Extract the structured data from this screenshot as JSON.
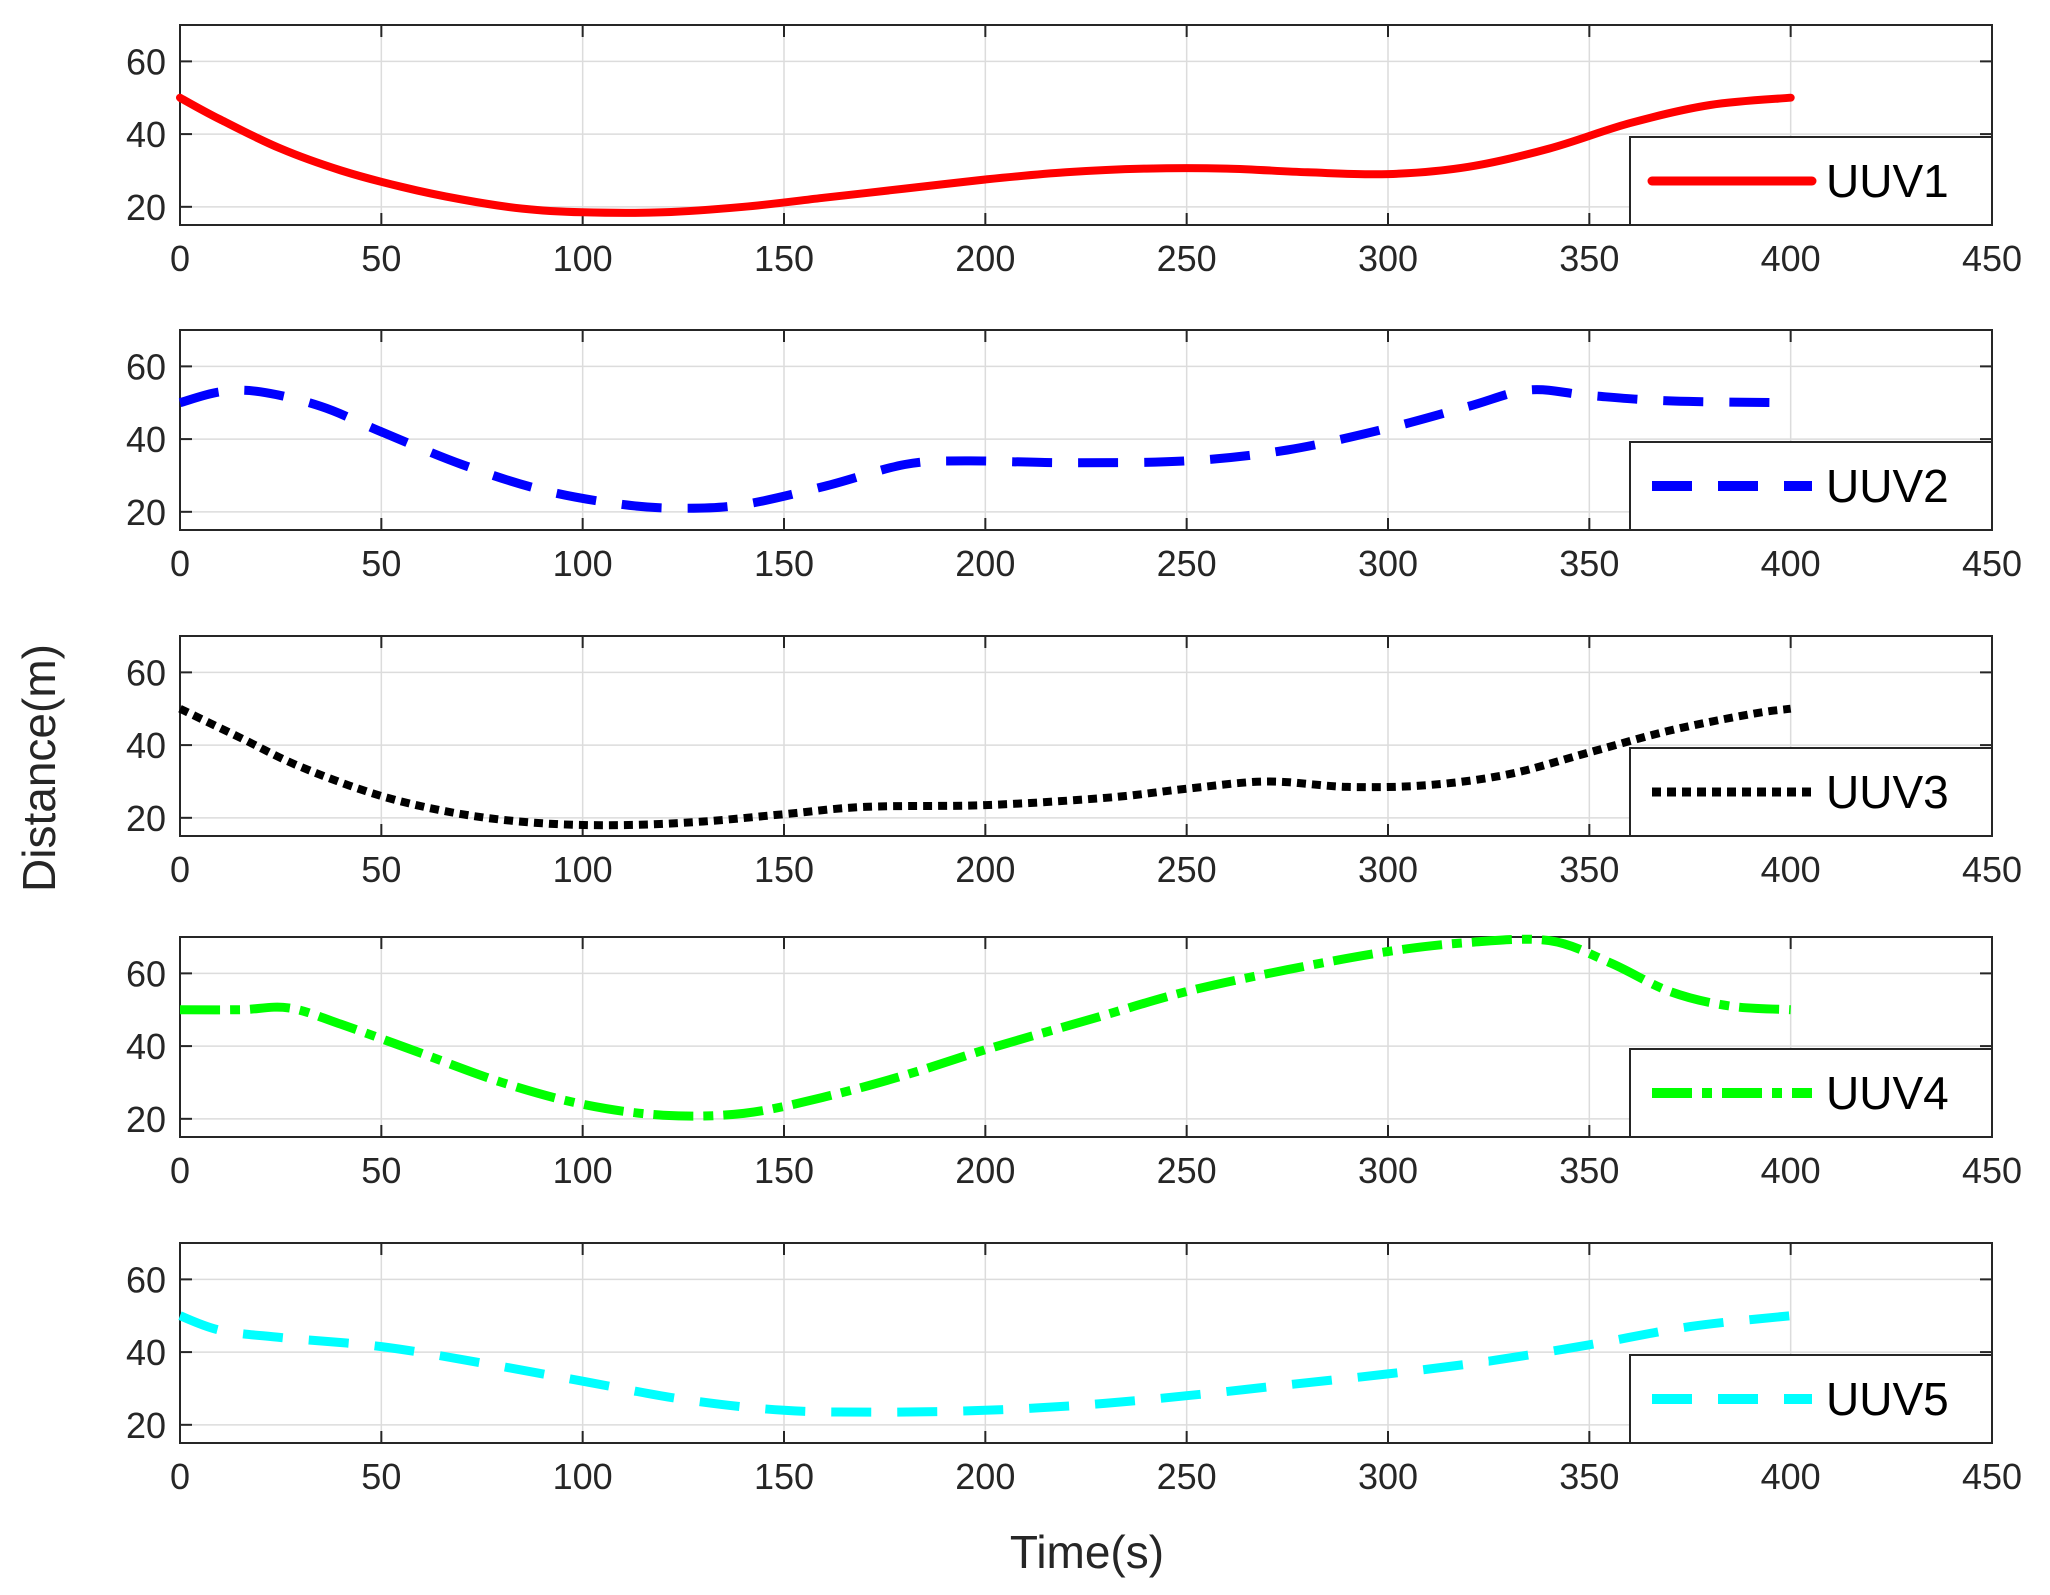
{
  "figure": {
    "xlabel": "Time(s)",
    "ylabel": "Distance(m)"
  },
  "chart_data": [
    {
      "type": "line",
      "xlim": [
        0,
        450
      ],
      "ylim": [
        15,
        70
      ],
      "xticks": [
        0,
        50,
        100,
        150,
        200,
        250,
        300,
        350,
        400,
        450
      ],
      "yticks": [
        20,
        40,
        60
      ],
      "grid": true,
      "legend_position": "bottom-right",
      "series": [
        {
          "name": "UUV1",
          "color": "#ff0000",
          "style": "solid",
          "x": [
            0,
            10,
            25,
            40,
            55,
            70,
            85,
            100,
            120,
            140,
            160,
            180,
            200,
            220,
            240,
            260,
            280,
            300,
            320,
            340,
            360,
            380,
            400
          ],
          "y": [
            50,
            44,
            36,
            30,
            25.5,
            22,
            19.5,
            18.5,
            18.5,
            20,
            22.5,
            25,
            27.5,
            29.5,
            30.5,
            30.5,
            29.5,
            29,
            31,
            36,
            43,
            48,
            50
          ]
        }
      ]
    },
    {
      "type": "line",
      "xlim": [
        0,
        450
      ],
      "ylim": [
        15,
        70
      ],
      "xticks": [
        0,
        50,
        100,
        150,
        200,
        250,
        300,
        350,
        400,
        450
      ],
      "yticks": [
        20,
        40,
        60
      ],
      "grid": true,
      "legend_position": "bottom-right",
      "series": [
        {
          "name": "UUV2",
          "color": "#0000ff",
          "style": "dashed",
          "x": [
            0,
            10,
            20,
            35,
            50,
            70,
            90,
            110,
            125,
            140,
            160,
            180,
            195,
            220,
            250,
            275,
            300,
            320,
            335,
            350,
            370,
            400
          ],
          "y": [
            50,
            53,
            53,
            49,
            42,
            33,
            26,
            22,
            21,
            22,
            27,
            33,
            34,
            33.5,
            34,
            37,
            43,
            49,
            53.5,
            52,
            50.5,
            50
          ]
        }
      ]
    },
    {
      "type": "line",
      "xlim": [
        0,
        450
      ],
      "ylim": [
        15,
        70
      ],
      "xticks": [
        0,
        50,
        100,
        150,
        200,
        250,
        300,
        350,
        400,
        450
      ],
      "yticks": [
        20,
        40,
        60
      ],
      "grid": true,
      "legend_position": "bottom-right",
      "series": [
        {
          "name": "UUV3",
          "color": "#000000",
          "style": "dotted",
          "x": [
            0,
            15,
            30,
            50,
            70,
            90,
            110,
            130,
            150,
            170,
            200,
            230,
            250,
            270,
            290,
            310,
            330,
            350,
            370,
            390,
            400
          ],
          "y": [
            50,
            42,
            34,
            26,
            21,
            18.5,
            18,
            19,
            21,
            23,
            23.5,
            25.5,
            28,
            30,
            28.5,
            29,
            32,
            38,
            44,
            48.5,
            50
          ]
        }
      ]
    },
    {
      "type": "line",
      "xlim": [
        0,
        450
      ],
      "ylim": [
        15,
        70
      ],
      "xticks": [
        0,
        50,
        100,
        150,
        200,
        250,
        300,
        350,
        400,
        450
      ],
      "yticks": [
        20,
        40,
        60
      ],
      "grid": true,
      "legend_position": "bottom-right",
      "series": [
        {
          "name": "UUV4",
          "color": "#00ff00",
          "style": "dash-dot",
          "x": [
            0,
            15,
            27,
            40,
            60,
            80,
            100,
            120,
            140,
            160,
            180,
            200,
            225,
            250,
            275,
            300,
            320,
            340,
            355,
            370,
            385,
            400
          ],
          "y": [
            50,
            50,
            50.5,
            46,
            38,
            30,
            24,
            21,
            21.5,
            26,
            32,
            39,
            47,
            55,
            61,
            66,
            68.5,
            69,
            63,
            55,
            51,
            50
          ]
        }
      ]
    },
    {
      "type": "line",
      "xlim": [
        0,
        450
      ],
      "ylim": [
        15,
        70
      ],
      "xticks": [
        0,
        50,
        100,
        150,
        200,
        250,
        300,
        350,
        400,
        450
      ],
      "yticks": [
        20,
        40,
        60
      ],
      "grid": true,
      "legend_position": "bottom-right",
      "series": [
        {
          "name": "UUV5",
          "color": "#00ffff",
          "style": "dashed",
          "x": [
            0,
            10,
            25,
            50,
            75,
            100,
            125,
            150,
            175,
            200,
            225,
            250,
            275,
            300,
            325,
            350,
            375,
            400
          ],
          "y": [
            50,
            46,
            44,
            41.5,
            37,
            32,
            27,
            24,
            23.5,
            24,
            25.5,
            28,
            31,
            34,
            37.5,
            42,
            47,
            50
          ]
        }
      ]
    }
  ]
}
